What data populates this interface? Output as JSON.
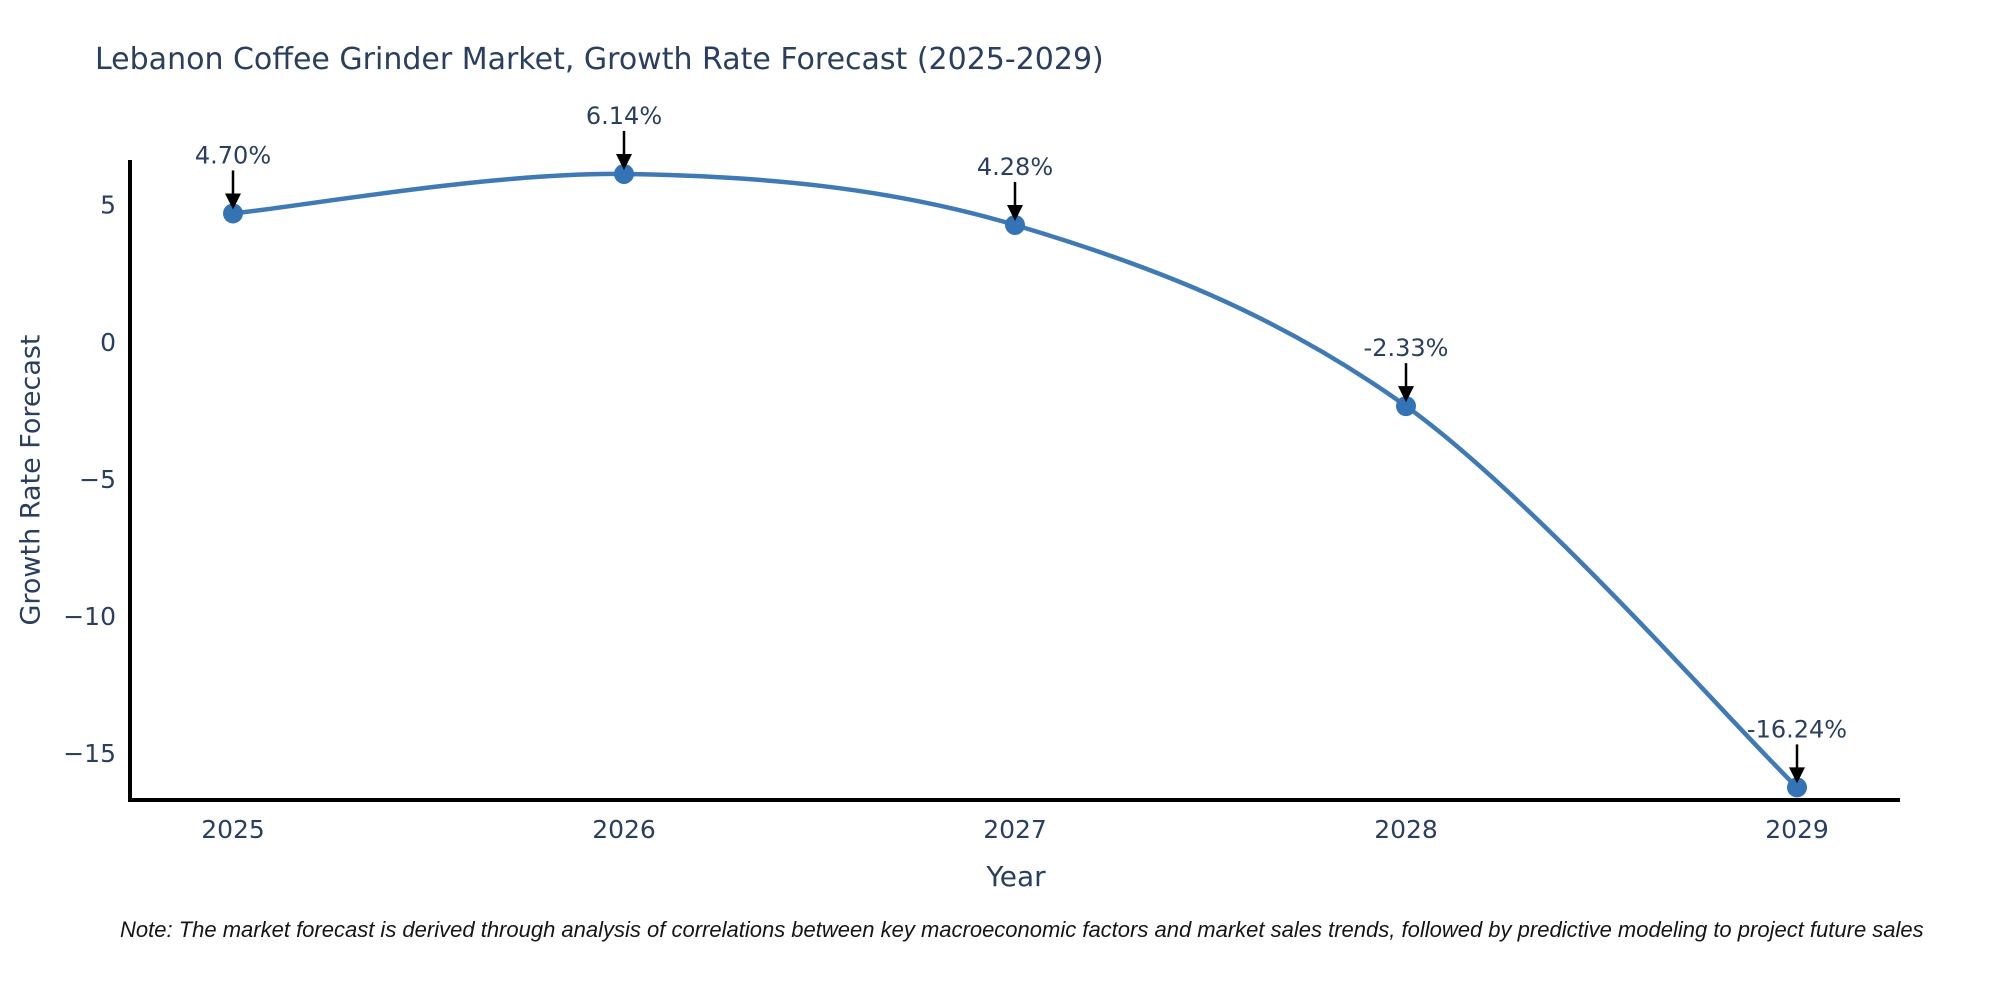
{
  "chart_data": {
    "type": "line",
    "title": "Lebanon Coffee Grinder Market, Growth Rate Forecast (2025-2029)",
    "xlabel": "Year",
    "ylabel": "Growth Rate Forecast",
    "categories": [
      "2025",
      "2026",
      "2027",
      "2028",
      "2029"
    ],
    "values": [
      4.7,
      6.14,
      4.28,
      -2.33,
      -16.24
    ],
    "point_labels": [
      "4.70%",
      "6.14%",
      "4.28%",
      "-2.33%",
      "-16.24%"
    ],
    "yticks": [
      5,
      0,
      -5,
      -10,
      -15
    ],
    "ytick_labels": [
      "5",
      "0",
      "−5",
      "−10",
      "−15"
    ],
    "ylim": [
      -16.7,
      6.65
    ],
    "grid": false,
    "legend": "none",
    "line_color": "#3f7ab5",
    "marker_color": "#3474b4",
    "arrow_color": "#000000",
    "spine_color": "#000000",
    "text_color": "#2a3f5f"
  },
  "note": {
    "text": "Note: The market forecast is derived through analysis of correlations between key macroeconomic factors and market sales trends, followed by predictive modeling to project future sales"
  }
}
